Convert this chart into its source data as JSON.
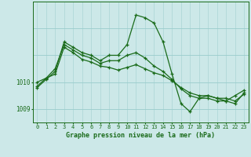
{
  "xlabel": "Graphe pression niveau de la mer (hPa)",
  "bg_color": "#cce8e8",
  "line_color": "#1a6b1a",
  "grid_h_color": "#99cccc",
  "grid_v_color": "#aad4d4",
  "ylim": [
    1008.5,
    1013.0
  ],
  "yticks": [
    1009,
    1010
  ],
  "xlim": [
    -0.5,
    23.5
  ],
  "xticks": [
    0,
    1,
    2,
    3,
    4,
    5,
    6,
    7,
    8,
    9,
    10,
    11,
    12,
    13,
    14,
    15,
    16,
    17,
    18,
    19,
    20,
    21,
    22,
    23
  ],
  "series": [
    [
      1009.8,
      1010.1,
      1010.4,
      1011.5,
      1011.3,
      1011.1,
      1011.0,
      1010.8,
      1011.0,
      1011.0,
      1011.4,
      1012.5,
      1012.4,
      1012.2,
      1011.5,
      1010.3,
      1009.2,
      1008.9,
      1009.4,
      1009.5,
      1009.4,
      1009.3,
      1009.5,
      1009.7
    ],
    [
      1009.85,
      1010.15,
      1010.5,
      1011.4,
      1011.2,
      1011.0,
      1010.9,
      1010.7,
      1010.8,
      1010.8,
      1011.0,
      1011.1,
      1010.9,
      1010.6,
      1010.4,
      1010.1,
      1009.75,
      1009.5,
      1009.4,
      1009.4,
      1009.3,
      1009.3,
      1009.2,
      1009.6
    ],
    [
      1010.0,
      1010.15,
      1010.3,
      1011.3,
      1011.1,
      1010.85,
      1010.75,
      1010.6,
      1010.55,
      1010.45,
      1010.55,
      1010.65,
      1010.5,
      1010.35,
      1010.25,
      1010.05,
      1009.8,
      1009.6,
      1009.5,
      1009.5,
      1009.4,
      1009.4,
      1009.3,
      1009.55
    ]
  ]
}
